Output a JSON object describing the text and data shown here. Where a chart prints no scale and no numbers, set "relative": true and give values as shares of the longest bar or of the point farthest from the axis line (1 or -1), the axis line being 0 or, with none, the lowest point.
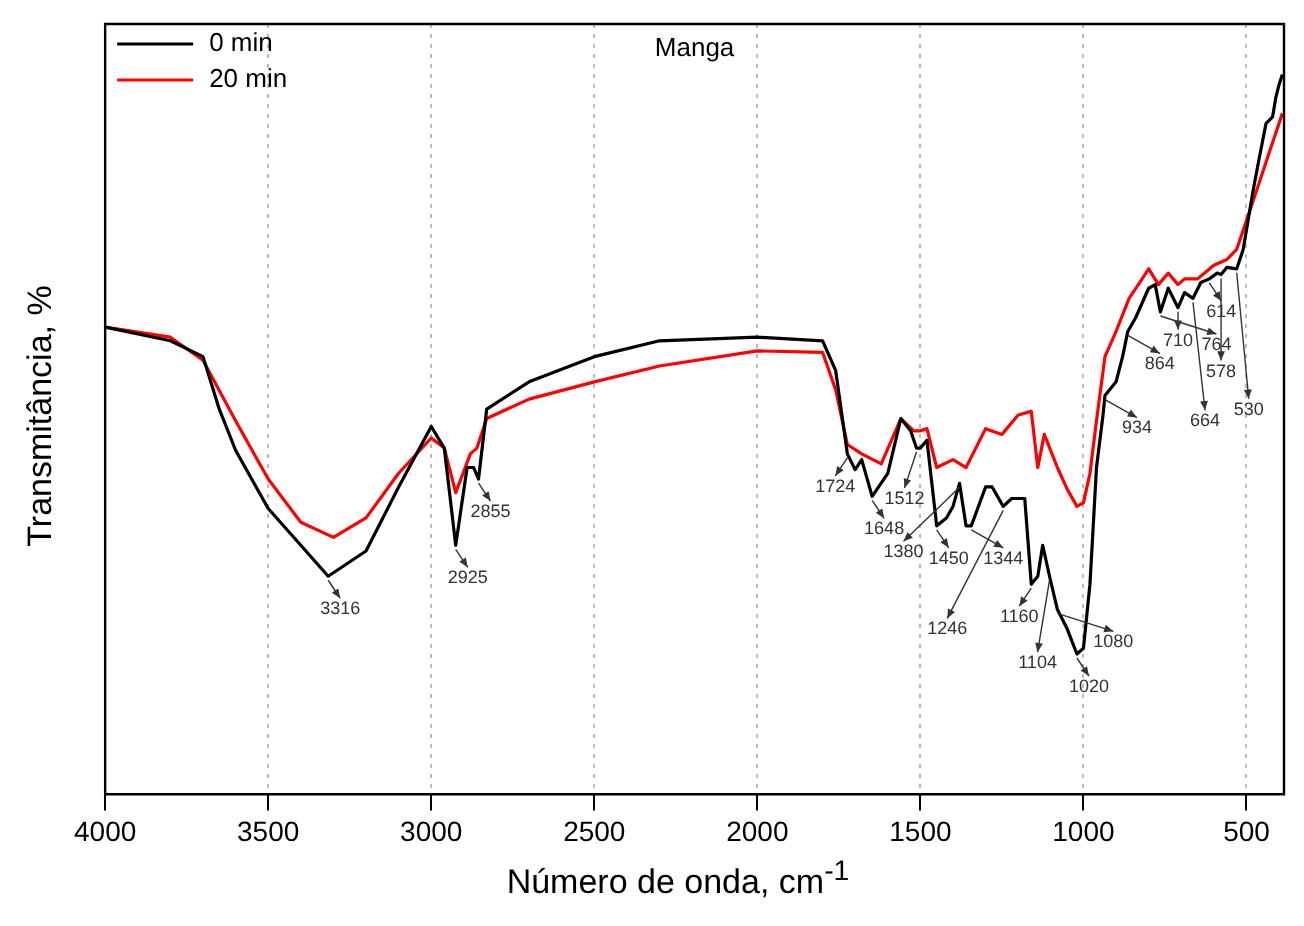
{
  "chart_data": {
    "type": "line",
    "title": "Manga",
    "xlabel": "Número de onda, cm$^{-1}$",
    "ylabel": "Transmitância, %",
    "relative": true,
    "xlim": [
      4000,
      385
    ],
    "xticks": [
      4000,
      3500,
      3000,
      2500,
      2000,
      1500,
      1000,
      500
    ],
    "grid": "x",
    "legend": "top left",
    "marker": "none",
    "line_style": "solid",
    "series": [
      {
        "name": "0 min",
        "color": "#000000",
        "x": [
          4000,
          3800,
          3700,
          3650,
          3600,
          3500,
          3400,
          3316,
          3200,
          3100,
          3000,
          2960,
          2925,
          2890,
          2870,
          2855,
          2830,
          2700,
          2500,
          2300,
          2000,
          1800,
          1760,
          1724,
          1700,
          1680,
          1648,
          1600,
          1560,
          1530,
          1512,
          1500,
          1480,
          1450,
          1420,
          1400,
          1380,
          1360,
          1344,
          1300,
          1280,
          1246,
          1220,
          1200,
          1180,
          1160,
          1140,
          1125,
          1104,
          1080,
          1050,
          1020,
          1000,
          980,
          960,
          940,
          934,
          900,
          880,
          864,
          840,
          800,
          780,
          764,
          740,
          710,
          690,
          664,
          640,
          614,
          590,
          578,
          560,
          530,
          510,
          480,
          460,
          440,
          420,
          410,
          400,
          390
        ],
        "values": [
          0.649,
          0.63,
          0.608,
          0.535,
          0.478,
          0.397,
          0.346,
          0.303,
          0.338,
          0.427,
          0.511,
          0.481,
          0.346,
          0.454,
          0.454,
          0.438,
          0.535,
          0.573,
          0.608,
          0.63,
          0.635,
          0.63,
          0.589,
          0.473,
          0.451,
          0.465,
          0.414,
          0.446,
          0.522,
          0.505,
          0.481,
          0.481,
          0.492,
          0.373,
          0.384,
          0.4,
          0.432,
          0.373,
          0.373,
          0.427,
          0.427,
          0.4,
          0.411,
          0.411,
          0.411,
          0.292,
          0.303,
          0.346,
          0.303,
          0.257,
          0.23,
          0.195,
          0.203,
          0.292,
          0.454,
          0.527,
          0.554,
          0.573,
          0.608,
          0.643,
          0.662,
          0.703,
          0.708,
          0.67,
          0.703,
          0.676,
          0.697,
          0.689,
          0.711,
          0.716,
          0.724,
          0.722,
          0.732,
          0.73,
          0.757,
          0.838,
          0.886,
          0.932,
          0.941,
          0.968,
          0.986,
          1.0
        ]
      },
      {
        "name": "20 min",
        "color": "#ff0000",
        "x": [
          4000,
          3800,
          3700,
          3600,
          3500,
          3400,
          3300,
          3200,
          3100,
          3000,
          2960,
          2925,
          2880,
          2860,
          2830,
          2700,
          2500,
          2300,
          2000,
          1800,
          1760,
          1724,
          1680,
          1620,
          1560,
          1520,
          1500,
          1480,
          1450,
          1400,
          1360,
          1300,
          1250,
          1200,
          1160,
          1140,
          1120,
          1080,
          1050,
          1020,
          1000,
          980,
          960,
          934,
          900,
          860,
          820,
          800,
          770,
          740,
          710,
          690,
          650,
          600,
          560,
          530,
          500,
          460,
          430,
          400,
          390
        ],
        "values": [
          0.649,
          0.635,
          0.603,
          0.519,
          0.438,
          0.378,
          0.357,
          0.384,
          0.446,
          0.495,
          0.481,
          0.419,
          0.473,
          0.481,
          0.522,
          0.549,
          0.573,
          0.595,
          0.616,
          0.614,
          0.562,
          0.486,
          0.473,
          0.459,
          0.522,
          0.505,
          0.505,
          0.508,
          0.454,
          0.465,
          0.454,
          0.508,
          0.5,
          0.527,
          0.532,
          0.454,
          0.5,
          0.454,
          0.424,
          0.4,
          0.405,
          0.446,
          0.519,
          0.608,
          0.643,
          0.689,
          0.716,
          0.73,
          0.708,
          0.724,
          0.708,
          0.716,
          0.716,
          0.735,
          0.743,
          0.757,
          0.797,
          0.851,
          0.892,
          0.932,
          0.946
        ]
      }
    ],
    "annotations": [
      {
        "text": "3316",
        "x": 3316,
        "y": 0.303
      },
      {
        "text": "2925",
        "x": 2925,
        "y": 0.346
      },
      {
        "text": "2855",
        "x": 2855,
        "y": 0.438
      },
      {
        "text": "1724",
        "x": 1724,
        "y": 0.473
      },
      {
        "text": "1648",
        "x": 1648,
        "y": 0.414
      },
      {
        "text": "1512",
        "x": 1512,
        "y": 0.481
      },
      {
        "text": "1450",
        "x": 1450,
        "y": 0.373
      },
      {
        "text": "1380",
        "x": 1380,
        "y": 0.432
      },
      {
        "text": "1344",
        "x": 1344,
        "y": 0.373
      },
      {
        "text": "1246",
        "x": 1246,
        "y": 0.4
      },
      {
        "text": "1160",
        "x": 1160,
        "y": 0.292
      },
      {
        "text": "1104",
        "x": 1104,
        "y": 0.303
      },
      {
        "text": "1080",
        "x": 1080,
        "y": 0.257
      },
      {
        "text": "1020",
        "x": 1020,
        "y": 0.195
      },
      {
        "text": "934",
        "x": 934,
        "y": 0.554
      },
      {
        "text": "864",
        "x": 864,
        "y": 0.643
      },
      {
        "text": "764",
        "x": 764,
        "y": 0.67
      },
      {
        "text": "710",
        "x": 710,
        "y": 0.676
      },
      {
        "text": "664",
        "x": 664,
        "y": 0.689
      },
      {
        "text": "614",
        "x": 614,
        "y": 0.716
      },
      {
        "text": "578",
        "x": 578,
        "y": 0.722
      },
      {
        "text": "530",
        "x": 530,
        "y": 0.73
      }
    ]
  }
}
